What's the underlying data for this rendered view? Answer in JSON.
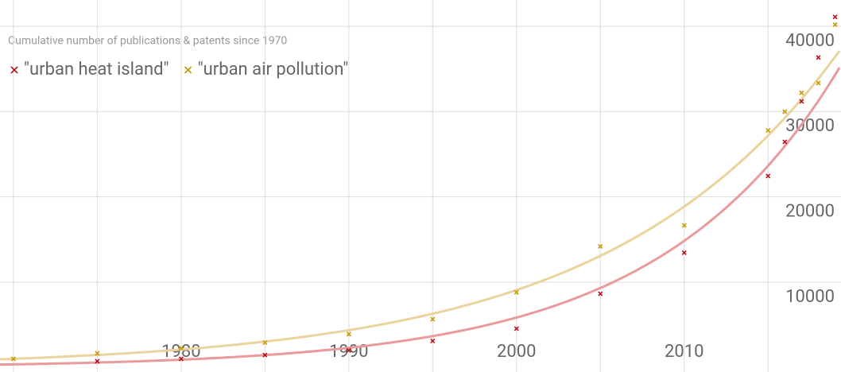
{
  "chart_data": {
    "type": "scatter",
    "subtitle": "Cumulative number of publications & patents since 1970",
    "series": [
      {
        "name": "\"urban heat island\"",
        "color": "#b5121b",
        "x": [
          1975,
          1980,
          1985,
          1990,
          1995,
          2000,
          2005,
          2010,
          2015,
          2016,
          2017,
          2018,
          2019
        ],
        "values": [
          727,
          1000,
          1450,
          2000,
          3100,
          4550,
          8640,
          13450,
          22450,
          26450,
          31200,
          36350,
          41100
        ]
      },
      {
        "name": "\"urban air pollution\"",
        "color": "#c99a06",
        "x": [
          1970,
          1975,
          1980,
          1985,
          1990,
          1995,
          2000,
          2005,
          2010,
          2015,
          2016,
          2017,
          2018,
          2019
        ],
        "values": [
          1000,
          1650,
          2250,
          2900,
          3900,
          5650,
          8800,
          14200,
          16650,
          27800,
          30000,
          32200,
          33350,
          40200
        ]
      }
    ],
    "trend_colors": [
      "#e99a9c",
      "#ead39c"
    ],
    "xlim": [
      1969.2,
      2019.35
    ],
    "ylim": [
      -540,
      43090
    ],
    "xticks": [
      1980,
      1990,
      2000,
      2010
    ],
    "xminor": [
      1970,
      1975,
      1985,
      1995,
      2005,
      2015
    ],
    "yticks": [
      10000,
      20000,
      30000,
      40000
    ],
    "grid": true
  }
}
